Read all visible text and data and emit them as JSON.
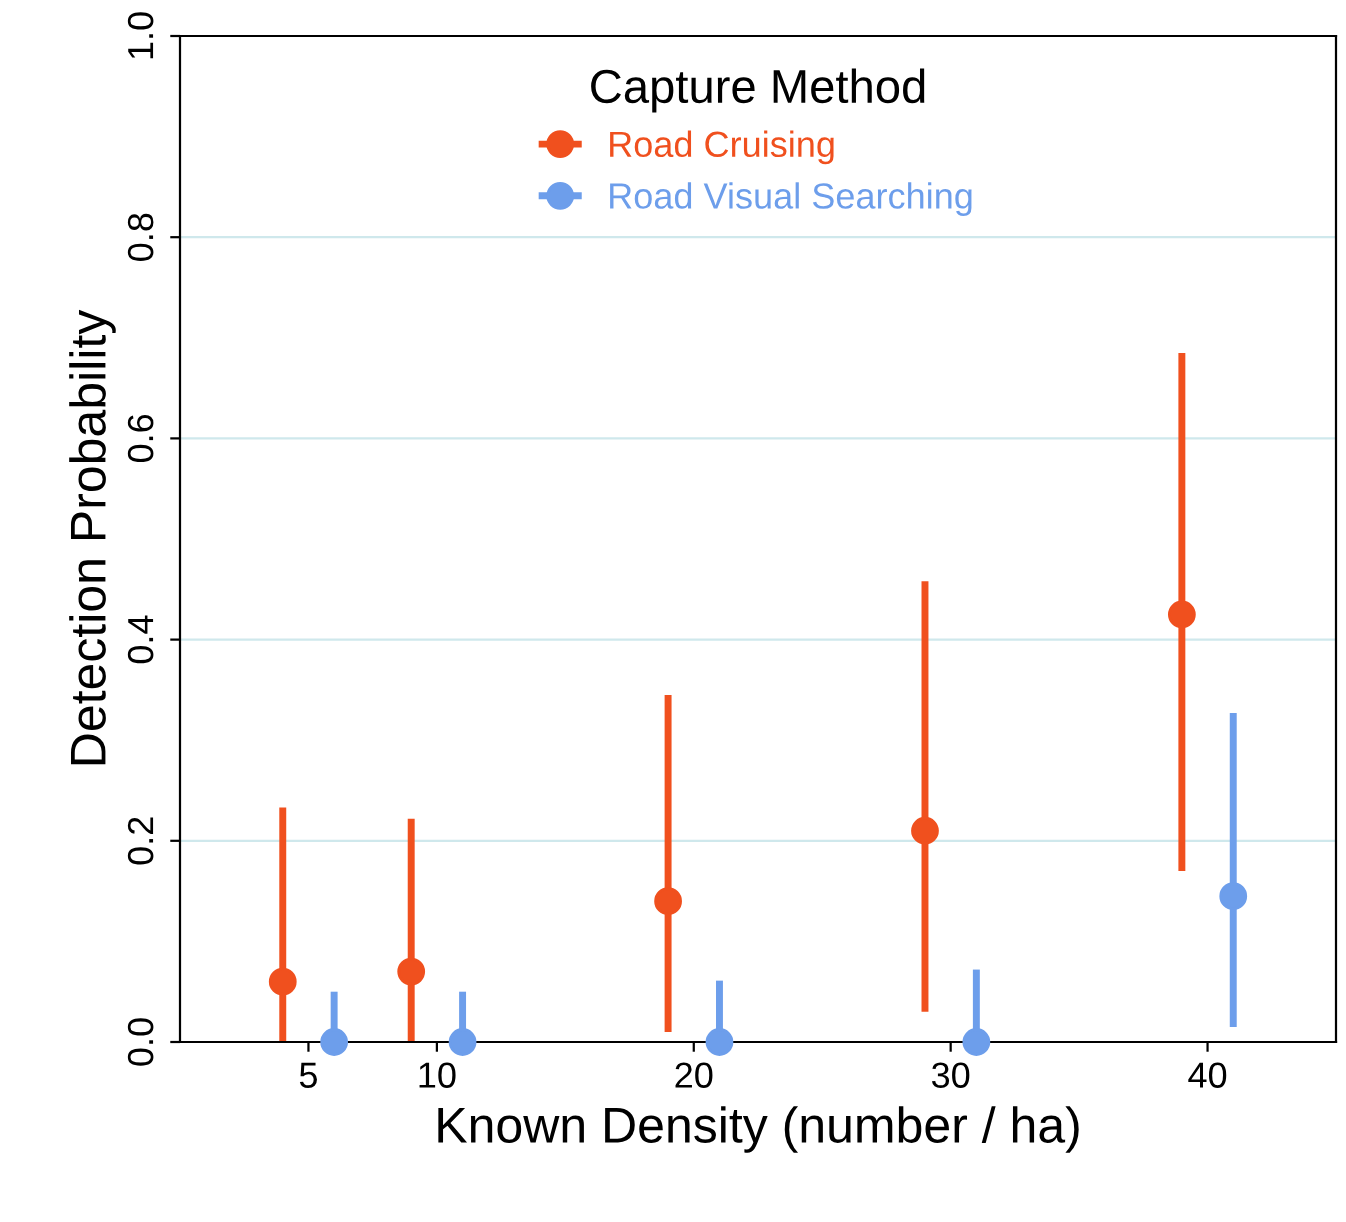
{
  "chart_data": {
    "type": "scatter",
    "xlabel": "Known Density (number / ha)",
    "ylabel": "Detection Probability",
    "legend_title": "Capture Method",
    "legend": "top",
    "grid": "y",
    "marker": "circle",
    "xlim": [
      0,
      45
    ],
    "xticks": [
      5,
      10,
      20,
      30,
      40
    ],
    "ylim": [
      0,
      1
    ],
    "yticks": [
      {
        "value": 0,
        "label": "0.0"
      },
      0.2,
      0.4,
      0.6,
      0.8,
      {
        "value": 1,
        "label": "1.0"
      }
    ],
    "series": [
      {
        "name": "Road Cruising",
        "color": "#f0501e",
        "x": [
          4,
          9,
          19,
          29,
          39
        ],
        "values": [
          0.06,
          0.07,
          0.14,
          0.21,
          0.425
        ],
        "errors": [
          [
            0,
            0.233
          ],
          [
            0,
            0.222
          ],
          [
            0.01,
            0.345
          ],
          [
            0.03,
            0.458
          ],
          [
            0.17,
            0.685
          ]
        ]
      },
      {
        "name": "Road Visual Searching",
        "color": "#6d9eeb",
        "x": [
          6,
          11,
          21,
          31,
          41
        ],
        "values": [
          0,
          0,
          0,
          0,
          0.145
        ],
        "errors": [
          [
            0,
            0.05
          ],
          [
            0,
            0.05
          ],
          [
            0,
            0.061
          ],
          [
            0,
            0.072
          ],
          [
            0.015,
            0.327
          ]
        ]
      }
    ]
  }
}
